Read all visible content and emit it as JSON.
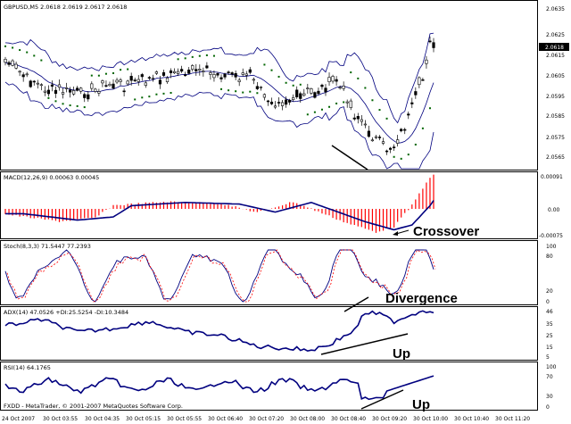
{
  "chart_data": [
    {
      "type": "candlestick",
      "panel": "price",
      "header": "GBPUSD,M5  2.0618 2.0619 2.0617 2.0618",
      "ylim": [
        2.056,
        2.064
      ],
      "yticks": [
        "2.0635",
        "2.0625",
        "2.0615",
        "2.0605",
        "2.0595",
        "2.0585",
        "2.0575",
        "2.0565"
      ],
      "current_price": "2.0618",
      "indicators": [
        "Bollinger Bands",
        "Parabolic SAR"
      ]
    },
    {
      "type": "histogram+line",
      "panel": "macd",
      "header": "MACD(12,26,9) 0.00063 0.00045",
      "ylim": [
        -0.00075,
        0.00091
      ],
      "yticks": [
        "0.00091",
        "0.00",
        "-0.00075"
      ],
      "annotation": "Crossover"
    },
    {
      "type": "line",
      "panel": "stoch",
      "header": "Stoch(8,3,3) 71.5447 77.2393",
      "ylim": [
        0,
        100
      ],
      "yticks": [
        "100",
        "80",
        "20",
        "0"
      ],
      "annotation": "Divergence"
    },
    {
      "type": "line",
      "panel": "adx",
      "header": "ADX(14) 47.0526 +DI:25.5254 -DI:10.3484",
      "yticks": [
        "46",
        "35",
        "25",
        "15",
        "5"
      ],
      "annotation": "Up"
    },
    {
      "type": "line",
      "panel": "rsi",
      "header": "RSI(14) 64.1765",
      "ylim": [
        0,
        100
      ],
      "yticks": [
        "100",
        "70",
        "30",
        "0"
      ],
      "annotation": "Up"
    }
  ],
  "x_axis_labels": [
    "24 Oct 2007",
    "30 Oct 03:55",
    "30 Oct 04:35",
    "30 Oct 05:15",
    "30 Oct 05:55",
    "30 Oct 06:40",
    "30 Oct 07:20",
    "30 Oct 08:00",
    "30 Oct 08:40",
    "30 Oct 09:20",
    "30 Oct 10:00",
    "30 Oct 10:40",
    "30 Oct 11:20"
  ],
  "footer": "FXDD - MetaTrader, © 2001-2007 MetaQuotes Software Corp.",
  "colors": {
    "macd_histogram": "#ff0000",
    "line": "#00007f",
    "sar": "#006400",
    "signal": "#ff0000"
  }
}
